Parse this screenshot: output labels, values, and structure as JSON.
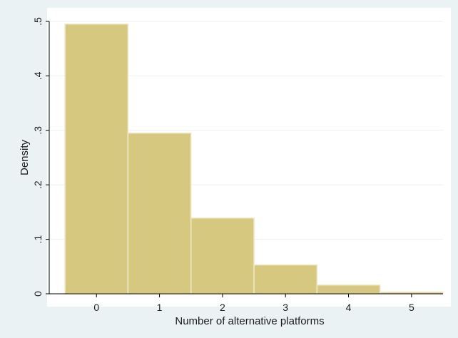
{
  "colors": {
    "background": "#eaf2f3",
    "plot_area": "#ffffff",
    "bar_fill": "#d6c87f",
    "bar_stroke": "#efe9c8",
    "gridline": "#eaf2f3",
    "axis": "#000000"
  },
  "chart_data": {
    "type": "bar",
    "title": "",
    "xlabel": "Number of alternative platforms",
    "ylabel": "Density",
    "categories": [
      "0",
      "1",
      "2",
      "3",
      "4",
      "5"
    ],
    "values": [
      0.495,
      0.295,
      0.139,
      0.053,
      0.016,
      0.003
    ],
    "bin_width": 1,
    "x": [
      0,
      1,
      2,
      3,
      4,
      5
    ],
    "xlim": [
      -0.75,
      5.5
    ],
    "ylim": [
      0,
      0.5
    ],
    "y_ticks": [
      0,
      0.1,
      0.2,
      0.3,
      0.4,
      0.5
    ],
    "y_tick_labels": [
      "0",
      ".1",
      ".2",
      ".3",
      ".4",
      ".5"
    ],
    "x_ticks": [
      0,
      1,
      2,
      3,
      4,
      5
    ],
    "x_tick_labels": [
      "0",
      "1",
      "2",
      "3",
      "4",
      "5"
    ],
    "grid": true,
    "legend": "none"
  }
}
